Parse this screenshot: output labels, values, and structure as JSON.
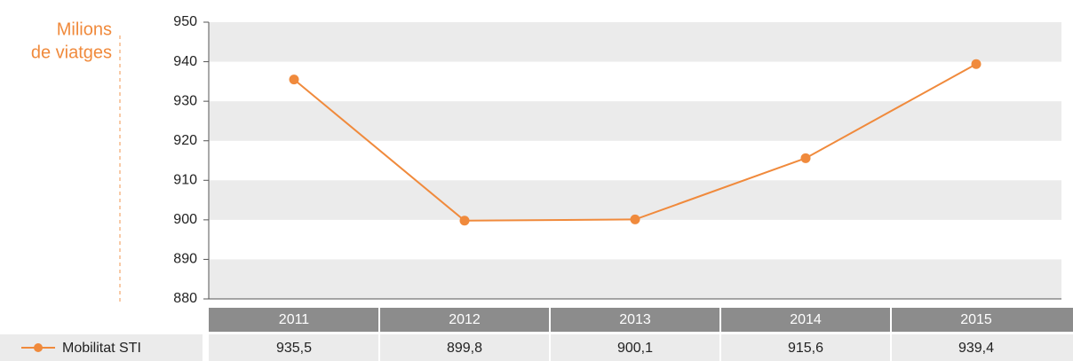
{
  "chart_data": {
    "type": "line",
    "y_label": [
      "Milions",
      "de viatges"
    ],
    "categories": [
      "2011",
      "2012",
      "2013",
      "2014",
      "2015"
    ],
    "series": [
      {
        "name": "Mobilitat STI",
        "color": "#f08a3c",
        "values": [
          935.5,
          899.8,
          900.1,
          915.6,
          939.4
        ],
        "value_labels": [
          "935,5",
          "899,8",
          "900,1",
          "915,6",
          "939,4"
        ]
      }
    ],
    "ylim": [
      880,
      950
    ],
    "yticks": [
      880,
      890,
      900,
      910,
      920,
      930,
      940,
      950
    ],
    "grid": "bands"
  }
}
